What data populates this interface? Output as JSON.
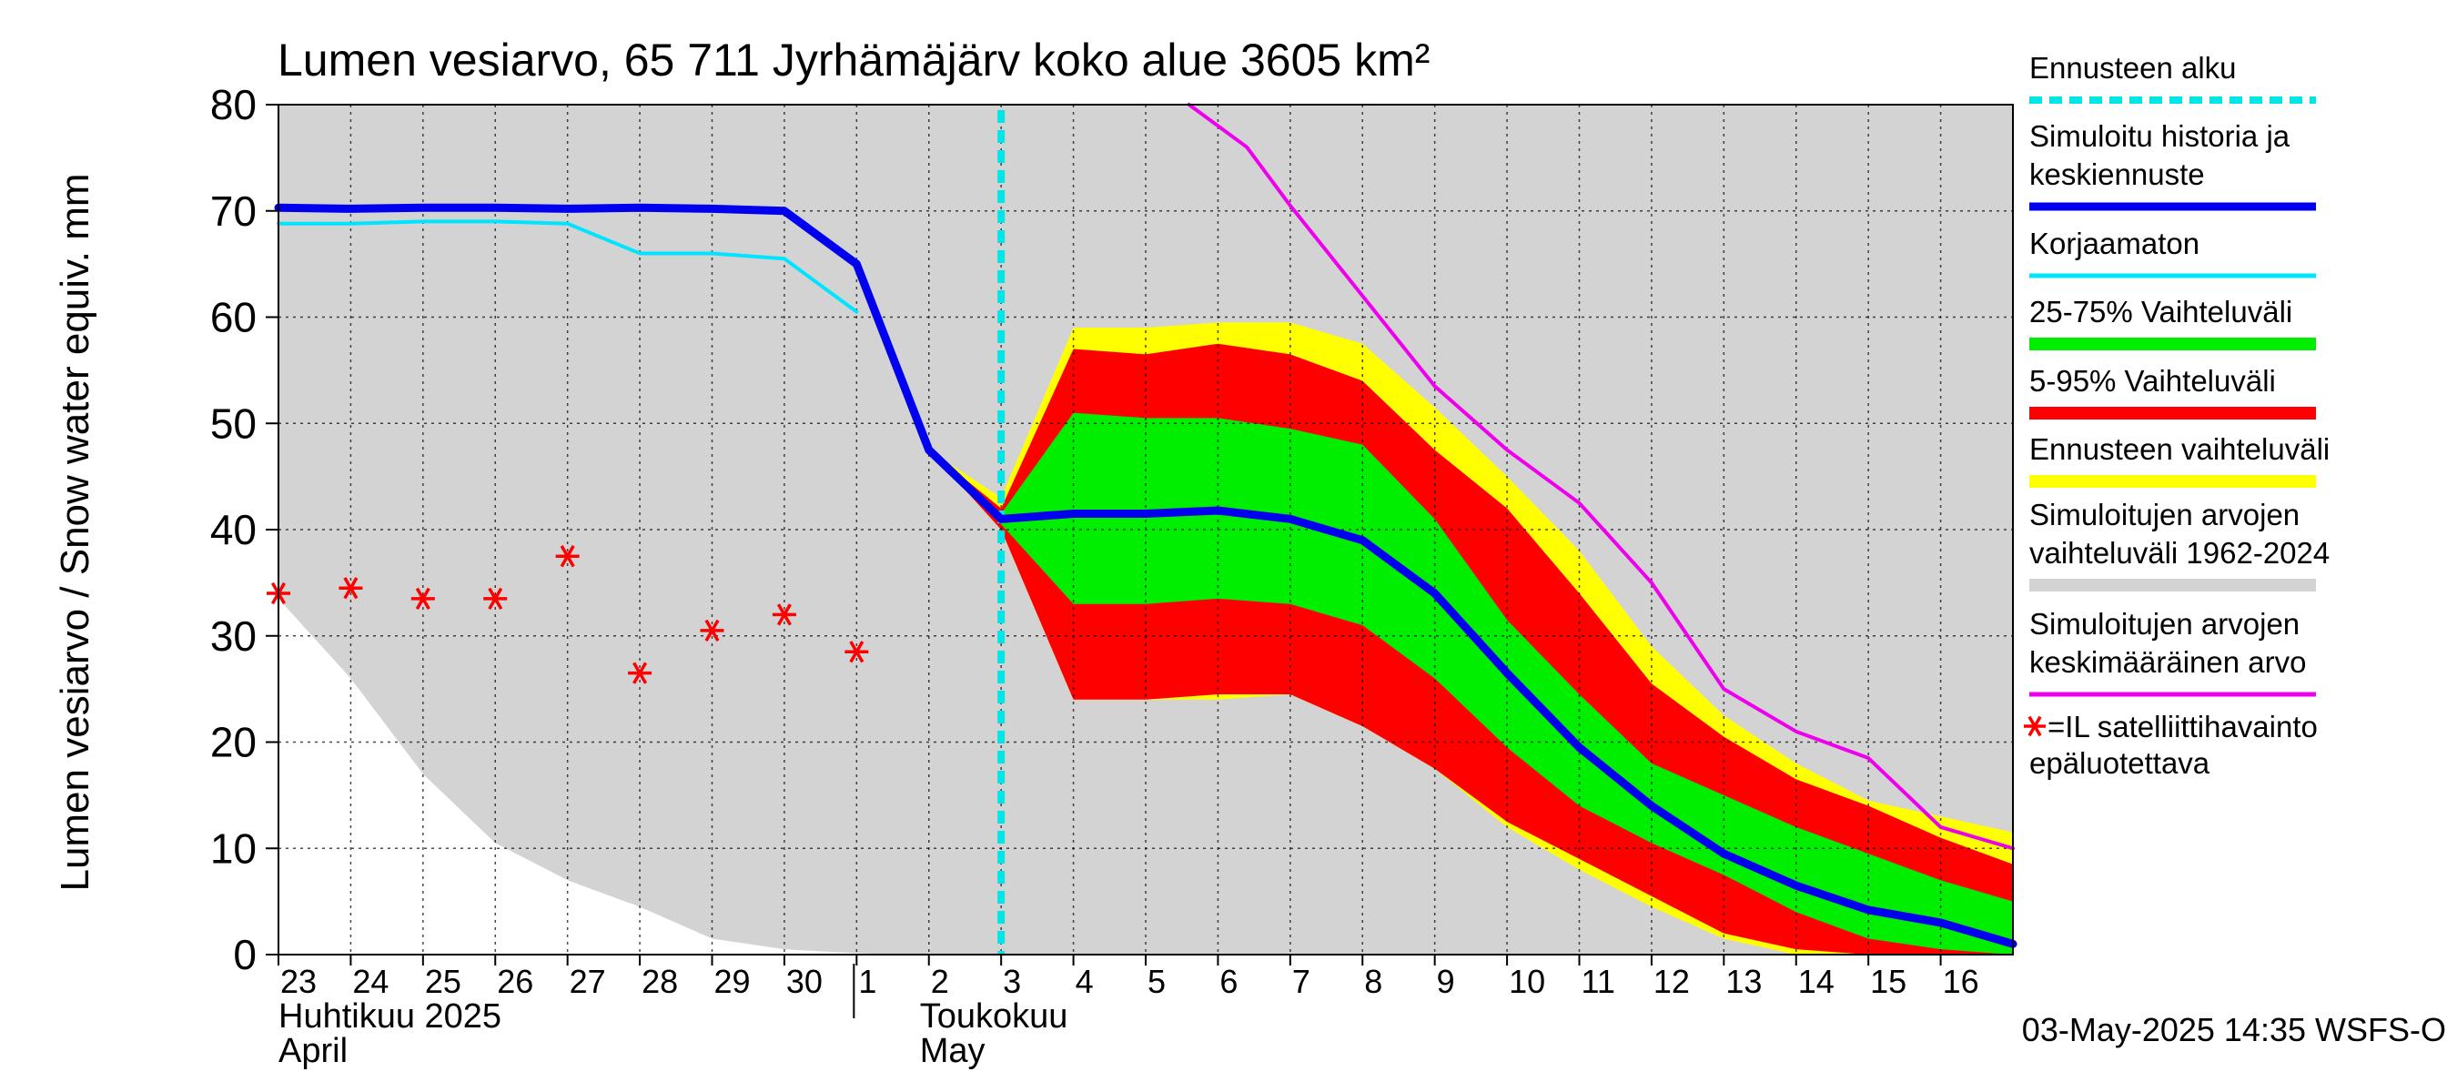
{
  "chart_data": {
    "type": "area",
    "title": "Lumen vesiarvo, 65 711 Jyrhämäjärv koko alue 3605 km²",
    "ylabel": "Lumen vesiarvo / Snow water equiv.    mm",
    "ylim": [
      0,
      80
    ],
    "yticks": [
      "0",
      "10",
      "20",
      "30",
      "40",
      "50",
      "60",
      "70",
      "80"
    ],
    "xlim": [
      0,
      24
    ],
    "x_ticks": [
      {
        "x": 0,
        "label": "23"
      },
      {
        "x": 1,
        "label": "24"
      },
      {
        "x": 2,
        "label": "25"
      },
      {
        "x": 3,
        "label": "26"
      },
      {
        "x": 4,
        "label": "27"
      },
      {
        "x": 5,
        "label": "28"
      },
      {
        "x": 6,
        "label": "29"
      },
      {
        "x": 7,
        "label": "30"
      },
      {
        "x": 8,
        "label": "1"
      },
      {
        "x": 9,
        "label": "2"
      },
      {
        "x": 10,
        "label": "3"
      },
      {
        "x": 11,
        "label": "4"
      },
      {
        "x": 12,
        "label": "5"
      },
      {
        "x": 13,
        "label": "6"
      },
      {
        "x": 14,
        "label": "7"
      },
      {
        "x": 15,
        "label": "8"
      },
      {
        "x": 16,
        "label": "9"
      },
      {
        "x": 17,
        "label": "10"
      },
      {
        "x": 18,
        "label": "11"
      },
      {
        "x": 19,
        "label": "12"
      },
      {
        "x": 20,
        "label": "13"
      },
      {
        "x": 21,
        "label": "14"
      },
      {
        "x": 22,
        "label": "15"
      },
      {
        "x": 23,
        "label": "16"
      }
    ],
    "month_labels": {
      "april_fi": "Huhtikuu  2025",
      "april_en": "April",
      "may_fi": "Toukokuu",
      "may_en": "May"
    },
    "forecast_start_x": 10,
    "grid": true,
    "legend_position": "right",
    "legend": [
      {
        "label": "Ennusteen alku",
        "color": "#00e5e5",
        "style": "dashed"
      },
      {
        "label": "Simuloitu historia ja\nkeskiennuste",
        "color": "#0000ee",
        "style": "thick"
      },
      {
        "label": "Korjaamaton",
        "color": "#00e5ff",
        "style": "line"
      },
      {
        "label": "25-75% Vaihteluväli",
        "color": "#00ee00",
        "style": "band"
      },
      {
        "label": "5-95% Vaihteluväli",
        "color": "#ff0000",
        "style": "band"
      },
      {
        "label": "Ennusteen vaihteluväli",
        "color": "#ffff00",
        "style": "band"
      },
      {
        "label": "Simuloitujen arvojen\nvaihteluväli 1962-2024",
        "color": "#d3d3d3",
        "style": "band"
      },
      {
        "label": "Simuloitujen arvojen\nkeskimääräinen arvo",
        "color": "#ee00ee",
        "style": "line"
      },
      {
        "label": "=IL satelliittihavainto\nepäluotettava",
        "color": "#ff0000",
        "style": "star"
      }
    ],
    "series": {
      "hist_range": {
        "x": [
          0,
          1,
          2,
          3,
          4,
          5,
          6,
          7,
          7.8,
          8.5,
          9,
          10,
          11,
          12,
          13,
          14,
          15,
          16,
          17,
          18,
          19,
          20,
          21,
          22,
          23,
          24
        ],
        "upper": [
          80,
          80,
          80,
          80,
          80,
          80,
          80,
          80,
          80,
          80,
          80,
          80,
          80,
          80,
          80,
          80,
          80,
          80,
          80,
          80,
          80,
          80,
          80,
          80,
          80,
          80
        ],
        "lower": [
          33.5,
          26,
          17,
          10.5,
          7,
          4.5,
          1.5,
          0.5,
          0.2,
          0,
          0,
          0,
          0,
          0,
          0,
          0,
          0,
          0,
          0,
          0,
          0,
          0,
          0,
          0,
          0,
          0
        ]
      },
      "forecast_range": {
        "x": [
          9,
          10,
          11,
          12,
          13,
          14,
          15,
          16,
          17,
          18,
          19,
          20,
          21,
          22,
          23,
          24
        ],
        "upper": [
          47.5,
          43,
          59,
          59,
          59.5,
          59.5,
          57.5,
          51.5,
          45,
          38,
          29,
          22.5,
          18,
          14.5,
          13,
          11.5
        ],
        "lower": [
          47.5,
          40,
          24,
          24,
          24,
          24.5,
          21.5,
          17.5,
          12,
          8,
          4.5,
          1.5,
          0,
          0,
          0,
          0
        ]
      },
      "band_5_95": {
        "x": [
          9,
          10,
          11,
          12,
          13,
          14,
          15,
          16,
          17,
          18,
          19,
          20,
          21,
          22,
          23,
          24
        ],
        "upper": [
          47.5,
          42,
          57,
          56.5,
          57.5,
          56.5,
          54,
          47.5,
          42,
          34,
          25.5,
          20.5,
          16.5,
          14,
          11,
          8.5
        ],
        "lower": [
          47.5,
          40,
          24,
          24,
          24.5,
          24.5,
          21.5,
          17.5,
          12.5,
          9,
          5.5,
          2,
          0.5,
          0,
          0,
          0
        ]
      },
      "band_25_75": {
        "x": [
          9,
          10,
          11,
          12,
          13,
          14,
          15,
          16,
          17,
          18,
          19,
          20,
          21,
          22,
          23,
          24
        ],
        "upper": [
          47.5,
          41.5,
          51,
          50.5,
          50.5,
          49.5,
          48,
          41,
          31.5,
          24.5,
          18,
          15,
          12,
          9.5,
          7,
          5
        ],
        "lower": [
          47.5,
          40.5,
          33,
          33,
          33.5,
          33,
          31,
          26,
          19.5,
          14,
          10.5,
          7.5,
          4,
          1.5,
          0.5,
          0
        ]
      },
      "mean_forecast": {
        "x": [
          0,
          1,
          2,
          3,
          4,
          5,
          6,
          7,
          8,
          9,
          10,
          11,
          12,
          13,
          14,
          15,
          16,
          17,
          18,
          19,
          20,
          21,
          22,
          23,
          24
        ],
        "y": [
          70.3,
          70.2,
          70.3,
          70.3,
          70.2,
          70.3,
          70.2,
          70,
          65,
          47.5,
          41,
          41.5,
          41.5,
          41.8,
          41,
          39,
          34,
          26.5,
          19.5,
          14,
          9.5,
          6.5,
          4.2,
          3,
          1
        ]
      },
      "uncorrected": {
        "x": [
          0,
          1,
          2,
          3,
          4,
          5,
          6,
          7,
          8
        ],
        "y": [
          68.8,
          68.8,
          69,
          69,
          68.8,
          66,
          66,
          65.5,
          60.5
        ]
      },
      "hist_mean": {
        "x": [
          12.6,
          13.4,
          14,
          15,
          16,
          17,
          18,
          19,
          20,
          21,
          22,
          23,
          24
        ],
        "y": [
          80,
          76,
          70.5,
          62,
          53.5,
          47.5,
          42.5,
          35,
          25,
          21,
          18.5,
          12,
          10
        ]
      },
      "satellite_obs": {
        "x": [
          0,
          1,
          2,
          3,
          4,
          5,
          6,
          7,
          8
        ],
        "y": [
          34,
          34.5,
          33.5,
          33.5,
          37.5,
          26.5,
          30.5,
          32,
          28.5
        ]
      }
    }
  },
  "footer": {
    "timestamp": "03-May-2025 14:35 WSFS-O"
  }
}
